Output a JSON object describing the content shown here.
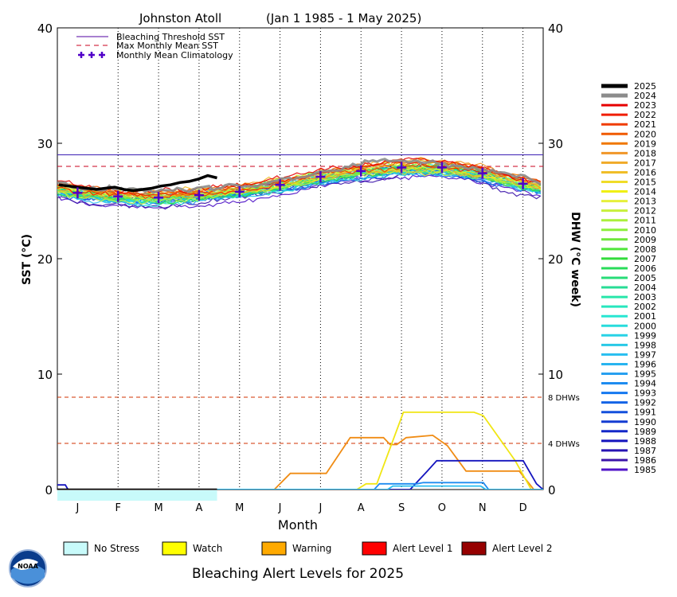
{
  "chart_data": {
    "type": "line",
    "title_station": "Johnston Atoll",
    "title_period": "(Jan 1 1985 - 1 May 2025)",
    "ylabel_left": "SST (°C)",
    "ylabel_right": "DHW (°C week)",
    "xlabel": "Month",
    "ylim": [
      0,
      40
    ],
    "yticks": [
      "0",
      "10",
      "20",
      "30",
      "40"
    ],
    "months": [
      "J",
      "F",
      "M",
      "A",
      "M",
      "J",
      "J",
      "A",
      "S",
      "O",
      "N",
      "D"
    ],
    "bleaching_threshold_sst": 29.0,
    "max_monthly_mean_sst": 28.0,
    "dhw_thresholds": [
      {
        "value": 8,
        "label": "8 DHWs"
      },
      {
        "value": 4,
        "label": "4 DHWs"
      }
    ],
    "legend": {
      "bleaching_threshold": "Bleaching Threshold SST",
      "max_monthly_mean": "Max Monthly Mean SST",
      "climatology": "Monthly Mean Climatology"
    },
    "climatology": [
      25.7,
      25.4,
      25.3,
      25.5,
      25.8,
      26.4,
      27.1,
      27.6,
      27.9,
      27.9,
      27.4,
      26.5
    ],
    "years": [
      {
        "year": "2025",
        "color": "#000000"
      },
      {
        "year": "2024",
        "color": "#8c8c8c"
      },
      {
        "year": "2023",
        "color": "#e60000"
      },
      {
        "year": "2022",
        "color": "#f01e00"
      },
      {
        "year": "2021",
        "color": "#f03c00"
      },
      {
        "year": "2020",
        "color": "#f05a00"
      },
      {
        "year": "2019",
        "color": "#f07800"
      },
      {
        "year": "2018",
        "color": "#f09628"
      },
      {
        "year": "2017",
        "color": "#f0aa28"
      },
      {
        "year": "2016",
        "color": "#f0be28"
      },
      {
        "year": "2015",
        "color": "#f0dc28"
      },
      {
        "year": "2014",
        "color": "#f0f014"
      },
      {
        "year": "2013",
        "color": "#e6f03c"
      },
      {
        "year": "2012",
        "color": "#c8f03c"
      },
      {
        "year": "2011",
        "color": "#aaf03c"
      },
      {
        "year": "2010",
        "color": "#8cf03c"
      },
      {
        "year": "2009",
        "color": "#6ee63c"
      },
      {
        "year": "2008",
        "color": "#50e63c"
      },
      {
        "year": "2007",
        "color": "#32dc3c"
      },
      {
        "year": "2006",
        "color": "#28dc5a"
      },
      {
        "year": "2005",
        "color": "#28dc78"
      },
      {
        "year": "2004",
        "color": "#28dc96"
      },
      {
        "year": "2003",
        "color": "#28e6aa"
      },
      {
        "year": "2002",
        "color": "#28e6be"
      },
      {
        "year": "2001",
        "color": "#28e6d2"
      },
      {
        "year": "2000",
        "color": "#28dcdc"
      },
      {
        "year": "1999",
        "color": "#28d2e6"
      },
      {
        "year": "1998",
        "color": "#28c8e6"
      },
      {
        "year": "1997",
        "color": "#28bef0"
      },
      {
        "year": "1996",
        "color": "#28b4f0"
      },
      {
        "year": "1995",
        "color": "#28a0f0"
      },
      {
        "year": "1994",
        "color": "#1e8cf0"
      },
      {
        "year": "1993",
        "color": "#1478f0"
      },
      {
        "year": "1992",
        "color": "#1464e6"
      },
      {
        "year": "1991",
        "color": "#1450dc"
      },
      {
        "year": "1990",
        "color": "#143cd2"
      },
      {
        "year": "1989",
        "color": "#1428c8"
      },
      {
        "year": "1988",
        "color": "#1414be"
      },
      {
        "year": "1987",
        "color": "#2814b4"
      },
      {
        "year": "1986",
        "color": "#3c14aa"
      },
      {
        "year": "1985",
        "color": "#5014c8"
      }
    ],
    "sst_2025": [
      {
        "day": 1,
        "sst": 26.4
      },
      {
        "day": 8,
        "sst": 26.3
      },
      {
        "day": 15,
        "sst": 26.2
      },
      {
        "day": 22,
        "sst": 26.1
      },
      {
        "day": 29,
        "sst": 26.0
      },
      {
        "day": 36,
        "sst": 26.1
      },
      {
        "day": 43,
        "sst": 26.2
      },
      {
        "day": 50,
        "sst": 26.0
      },
      {
        "day": 57,
        "sst": 25.9
      },
      {
        "day": 64,
        "sst": 26.0
      },
      {
        "day": 71,
        "sst": 26.1
      },
      {
        "day": 78,
        "sst": 26.3
      },
      {
        "day": 85,
        "sst": 26.4
      },
      {
        "day": 92,
        "sst": 26.6
      },
      {
        "day": 99,
        "sst": 26.7
      },
      {
        "day": 106,
        "sst": 26.9
      },
      {
        "day": 113,
        "sst": 27.2
      },
      {
        "day": 120,
        "sst": 27.0
      }
    ],
    "dhw_series": [
      {
        "name": "orange",
        "color": "#f08c14",
        "points": [
          {
            "day": 0,
            "dhw": 0
          },
          {
            "day": 163,
            "dhw": 0
          },
          {
            "day": 175,
            "dhw": 1.4
          },
          {
            "day": 202,
            "dhw": 1.4
          },
          {
            "day": 220,
            "dhw": 4.5
          },
          {
            "day": 245,
            "dhw": 4.5
          },
          {
            "day": 250,
            "dhw": 3.9
          },
          {
            "day": 255,
            "dhw": 3.9
          },
          {
            "day": 262,
            "dhw": 4.5
          },
          {
            "day": 282,
            "dhw": 4.7
          },
          {
            "day": 293,
            "dhw": 3.8
          },
          {
            "day": 307,
            "dhw": 1.6
          },
          {
            "day": 347,
            "dhw": 1.6
          },
          {
            "day": 358,
            "dhw": 0
          },
          {
            "day": 365,
            "dhw": 0
          }
        ]
      },
      {
        "name": "yellow",
        "color": "#f0e614",
        "points": [
          {
            "day": 0,
            "dhw": 0
          },
          {
            "day": 225,
            "dhw": 0
          },
          {
            "day": 232,
            "dhw": 0.5
          },
          {
            "day": 240,
            "dhw": 0.5
          },
          {
            "day": 260,
            "dhw": 6.7
          },
          {
            "day": 313,
            "dhw": 6.7
          },
          {
            "day": 320,
            "dhw": 6.4
          },
          {
            "day": 344,
            "dhw": 2.5
          },
          {
            "day": 356,
            "dhw": 0
          },
          {
            "day": 365,
            "dhw": 0
          }
        ]
      },
      {
        "name": "darkblue",
        "color": "#1414be",
        "points": [
          {
            "day": 0,
            "dhw": 0.4
          },
          {
            "day": 6,
            "dhw": 0.4
          },
          {
            "day": 8,
            "dhw": 0
          },
          {
            "day": 265,
            "dhw": 0
          },
          {
            "day": 278,
            "dhw": 1.6
          },
          {
            "day": 285,
            "dhw": 2.5
          },
          {
            "day": 350,
            "dhw": 2.5
          },
          {
            "day": 360,
            "dhw": 0.5
          },
          {
            "day": 365,
            "dhw": 0
          }
        ]
      },
      {
        "name": "blue",
        "color": "#1e8cf0",
        "points": [
          {
            "day": 0,
            "dhw": 0
          },
          {
            "day": 238,
            "dhw": 0
          },
          {
            "day": 242,
            "dhw": 0.5
          },
          {
            "day": 270,
            "dhw": 0.5
          },
          {
            "day": 275,
            "dhw": 0.6
          },
          {
            "day": 320,
            "dhw": 0.6
          },
          {
            "day": 324,
            "dhw": 0
          },
          {
            "day": 365,
            "dhw": 0
          }
        ]
      },
      {
        "name": "cyan",
        "color": "#28bef0",
        "points": [
          {
            "day": 0,
            "dhw": 0
          },
          {
            "day": 248,
            "dhw": 0
          },
          {
            "day": 252,
            "dhw": 0.3
          },
          {
            "day": 318,
            "dhw": 0.3
          },
          {
            "day": 322,
            "dhw": 0
          },
          {
            "day": 365,
            "dhw": 0
          }
        ]
      }
    ],
    "dhw_2025": [
      {
        "day": 0,
        "dhw": 0
      },
      {
        "day": 120,
        "dhw": 0
      }
    ],
    "alert_2025": {
      "from_day": 0,
      "to_day": 120,
      "level": "No Stress"
    }
  },
  "alert_legend": [
    {
      "label": "No Stress",
      "color": "#c8fafa"
    },
    {
      "label": "Watch",
      "color": "#ffff00"
    },
    {
      "label": "Warning",
      "color": "#ffaa00"
    },
    {
      "label": "Alert Level 1",
      "color": "#ff0000"
    },
    {
      "label": "Alert Level 2",
      "color": "#960000"
    }
  ],
  "footer_title": "Bleaching Alert Levels for 2025",
  "logo_text": "NOAA"
}
